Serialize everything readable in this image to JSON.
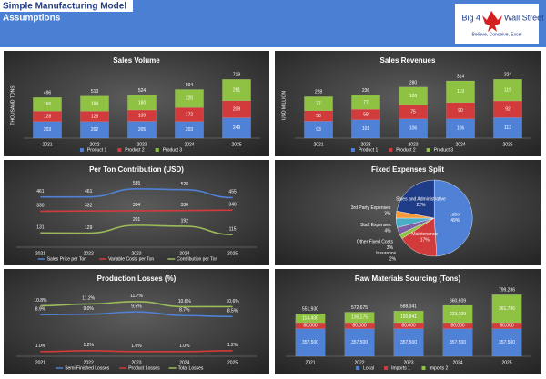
{
  "header": {
    "title": "Simple Manufacturing Model",
    "subtitle": "Assumptions",
    "logo_left": "Big 4",
    "logo_right": "Wall Street",
    "tagline": "Believe, Conceive, Excel"
  },
  "chart_data": [
    {
      "type": "bar",
      "stacked": true,
      "title": "Sales Volume",
      "y_label": "THOUSAND TONS",
      "categories": [
        "2021",
        "2022",
        "2023",
        "2024",
        "2025"
      ],
      "ylim": [
        0,
        800
      ],
      "series": [
        {
          "name": "Product 1",
          "color": "#4f81d6",
          "values": [
            203,
            202,
            205,
            203,
            249
          ]
        },
        {
          "name": "Product 2",
          "color": "#d23b3b",
          "values": [
            128,
            128,
            139,
            172,
            209
          ]
        },
        {
          "name": "Product 3",
          "color": "#8fc142",
          "values": [
            166,
            184,
            180,
            220,
            261
          ]
        }
      ],
      "totals": [
        496,
        513,
        524,
        594,
        719
      ]
    },
    {
      "type": "bar",
      "stacked": true,
      "title": "Sales Revenues",
      "y_label": "USD MILLION",
      "categories": [
        "2021",
        "2022",
        "2023",
        "2024",
        "2025"
      ],
      "ylim": [
        0,
        360
      ],
      "series": [
        {
          "name": "Product 1",
          "color": "#4f81d6",
          "values": [
            93,
            101,
            106,
            106,
            113
          ]
        },
        {
          "name": "Product 2",
          "color": "#d23b3b",
          "values": [
            58,
            58,
            75,
            90,
            92
          ]
        },
        {
          "name": "Product 3",
          "color": "#8fc142",
          "values": [
            77,
            77,
            100,
            119,
            119
          ]
        }
      ],
      "totals": [
        228,
        236,
        280,
        314,
        324
      ]
    },
    {
      "type": "line",
      "title": "Per Ton Contribution (USD)",
      "categories": [
        "2021",
        "2022",
        "2023",
        "2024",
        "2025"
      ],
      "ylim": [
        0,
        600
      ],
      "series": [
        {
          "name": "Sales Price per Ton",
          "color": "#4f81d6",
          "values": [
            461,
            461,
            535,
            528,
            455
          ]
        },
        {
          "name": "Variable Costs per Ton",
          "color": "#d23b3b",
          "values": [
            330,
            332,
            334,
            336,
            340
          ]
        },
        {
          "name": "Contribution per Ton",
          "color": "#9bbb59",
          "values": [
            131,
            129,
            201,
            192,
            115
          ]
        }
      ]
    },
    {
      "type": "pie",
      "title": "Fixed Expenses Split",
      "categories": [
        "Labor",
        "Maintenance",
        "Insurance",
        "Other Fixed Costs",
        "Staff Expenses",
        "3rd Party Expenses",
        "Sales and Administrative"
      ],
      "values": [
        49,
        17,
        2,
        3,
        4,
        3,
        22
      ],
      "value_labels": [
        "49%",
        "17%",
        "2%",
        "3%",
        "4%",
        "3%",
        "22%"
      ],
      "colors": [
        "#4f81d6",
        "#d23b3b",
        "#8fc142",
        "#7e5fa8",
        "#4bacc6",
        "#f39a3c",
        "#1f3c88"
      ]
    },
    {
      "type": "line",
      "title": "Production Losses (%)",
      "categories": [
        "2021",
        "2022",
        "2023",
        "2024",
        "2025"
      ],
      "ylim": [
        0,
        14
      ],
      "series": [
        {
          "name": "Semi Finished Losses",
          "color": "#4f81d6",
          "values": [
            8.9,
            9.0,
            9.5,
            8.7,
            8.5
          ],
          "value_labels": [
            "8.9%",
            "9.0%",
            "9.5%",
            "8.7%",
            "8.5%"
          ]
        },
        {
          "name": "Product Losses",
          "color": "#d23b3b",
          "values": [
            1.0,
            1.2,
            1.0,
            1.0,
            1.2
          ],
          "value_labels": [
            "1.0%",
            "1.2%",
            "1.0%",
            "1.0%",
            "1.2%"
          ]
        },
        {
          "name": "Total Losses",
          "color": "#9bbb59",
          "values": [
            10.8,
            11.2,
            11.7,
            10.6,
            10.6
          ],
          "value_labels": [
            "10.8%",
            "11.2%",
            "11.7%",
            "10.6%",
            "10.6%"
          ]
        }
      ]
    },
    {
      "type": "bar",
      "stacked": true,
      "title": "Raw Materials Sourcing (Tons)",
      "categories": [
        "2021",
        "2022",
        "2023",
        "2024",
        "2025"
      ],
      "ylim": [
        0,
        850000
      ],
      "series": [
        {
          "name": "Local",
          "color": "#4f81d6",
          "values": [
            357500,
            357500,
            357500,
            357500,
            357500
          ],
          "value_labels": [
            "357,500",
            "357,500",
            "357,500",
            "357,500",
            "357,500"
          ]
        },
        {
          "name": "Imports 1",
          "color": "#d23b3b",
          "values": [
            80000,
            80000,
            80000,
            80000,
            80000
          ],
          "value_labels": [
            "80,000",
            "80,000",
            "80,000",
            "80,000",
            "80,000"
          ]
        },
        {
          "name": "Imports 2",
          "color": "#8fc142",
          "values": [
            114430,
            135175,
            150841,
            223109,
            361786
          ],
          "value_labels": [
            "114,430",
            "135,175",
            "150,841",
            "223,109",
            "361,786"
          ]
        }
      ],
      "totals": [
        551930,
        572675,
        588341,
        660609,
        799286
      ],
      "total_labels": [
        "551,930",
        "572,675",
        "588,341",
        "660,609",
        "799,286"
      ]
    }
  ]
}
